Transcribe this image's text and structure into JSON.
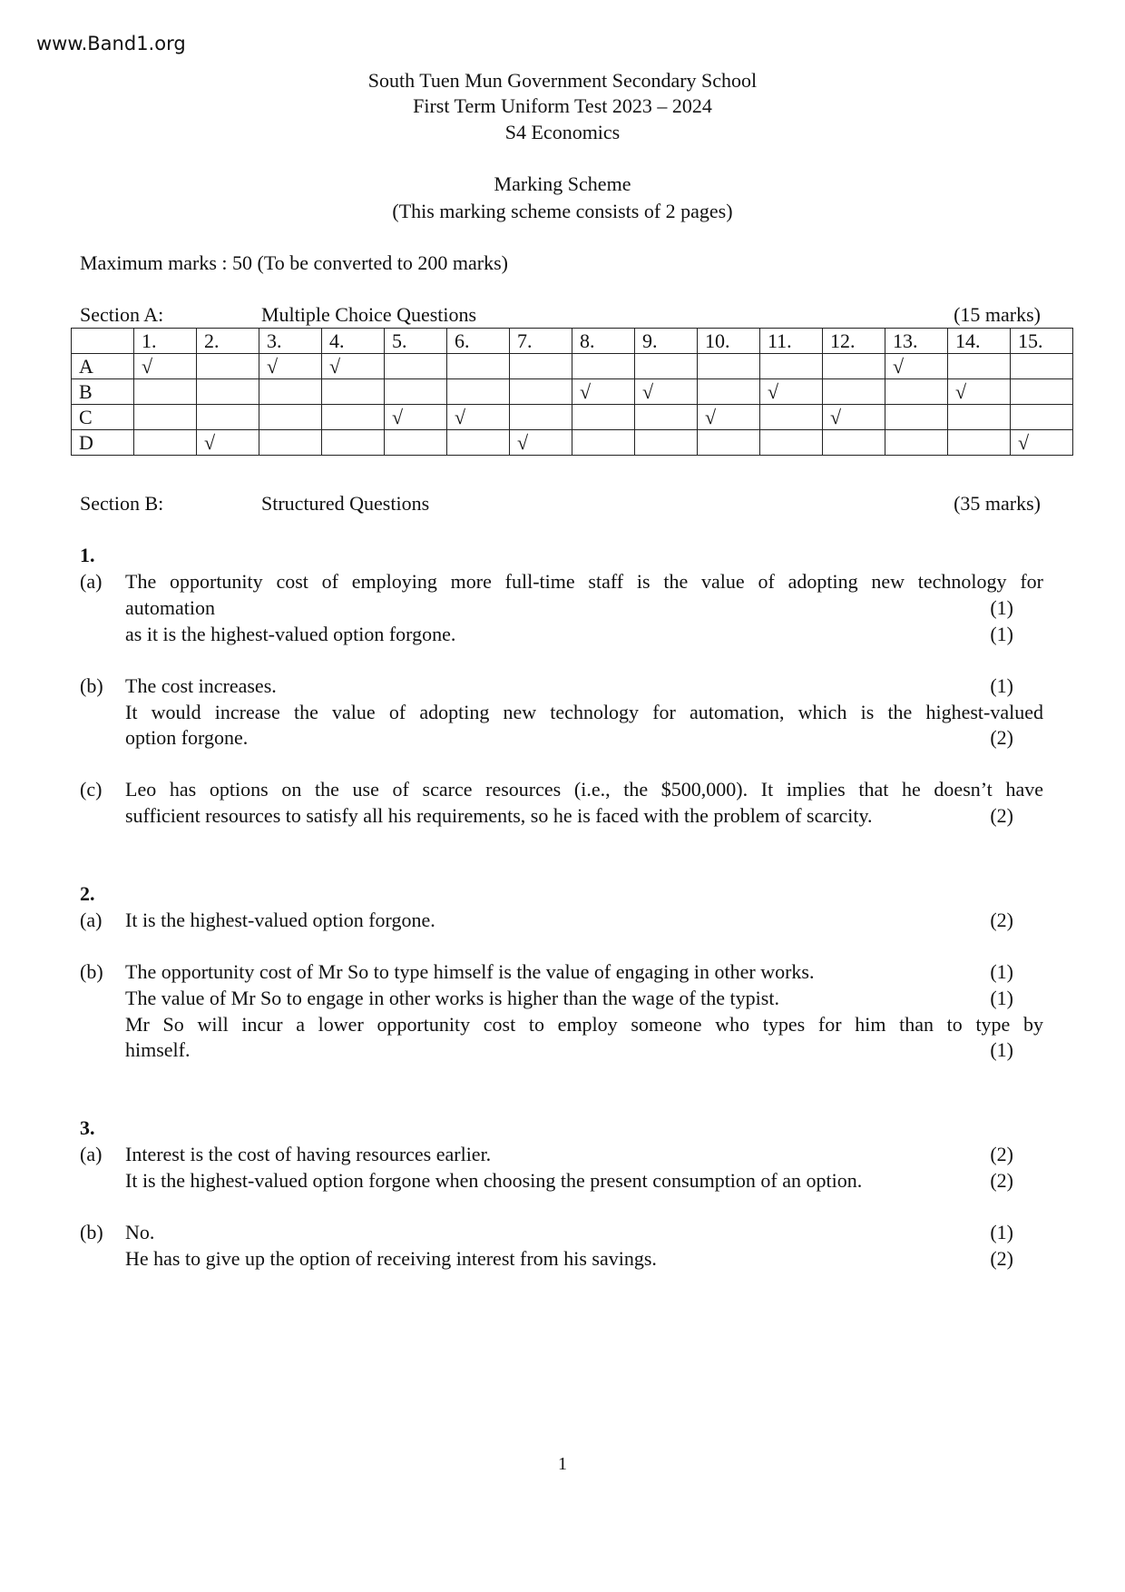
{
  "watermark": "www.Band1.org",
  "header": {
    "school": "South Tuen Mun Government Secondary School",
    "test": "First Term Uniform Test 2023 – 2024",
    "subject": "S4 Economics",
    "doc_title": "Marking Scheme",
    "pages_note": "(This marking scheme consists of 2 pages)",
    "max_marks": "Maximum marks : 50 (To be converted to 200 marks)"
  },
  "section_a": {
    "label": "Section A:",
    "title": "Multiple Choice Questions",
    "marks": "(15 marks)",
    "columns": [
      "1.",
      "2.",
      "3.",
      "4.",
      "5.",
      "6.",
      "7.",
      "8.",
      "9.",
      "10.",
      "11.",
      "12.",
      "13.",
      "14.",
      "15."
    ],
    "options": [
      "A",
      "B",
      "C",
      "D"
    ],
    "tick": "√",
    "answers": [
      "A",
      "D",
      "A",
      "A",
      "C",
      "C",
      "D",
      "B",
      "B",
      "C",
      "B",
      "C",
      "A",
      "B",
      "D"
    ]
  },
  "section_b": {
    "label": "Section B:",
    "title": "Structured Questions",
    "marks": "(35 marks)",
    "questions": [
      {
        "number": "1.",
        "parts": [
          {
            "label": "(a)",
            "lines": [
              {
                "text": "The opportunity cost of employing more full-time staff is the value of adopting new technology for",
                "mark": "",
                "justify": true
              },
              {
                "text": "automation",
                "mark": "(1)"
              },
              {
                "text": "as it is the highest-valued option forgone.",
                "mark": "(1)"
              }
            ]
          },
          {
            "label": "(b)",
            "lines": [
              {
                "text": "The cost increases.",
                "mark": "(1)"
              },
              {
                "text": "It would increase the value of adopting new technology for automation, which is the highest-valued",
                "mark": "",
                "justify": true
              },
              {
                "text": "option forgone.",
                "mark": "(2)"
              }
            ]
          },
          {
            "label": "(c)",
            "lines": [
              {
                "text": "Leo has options on the use of scarce resources (i.e., the $500,000). It implies that he doesn’t have",
                "mark": "",
                "justify": true
              },
              {
                "text": "sufficient resources to satisfy all his requirements, so he is faced with the problem of scarcity.",
                "mark": "(2)"
              }
            ]
          }
        ]
      },
      {
        "number": "2.",
        "parts": [
          {
            "label": "(a)",
            "lines": [
              {
                "text": "It is the highest-valued option forgone.",
                "mark": "(2)"
              }
            ]
          },
          {
            "label": "(b)",
            "lines": [
              {
                "text": "The opportunity cost of Mr So to type himself is the value of engaging in other works.",
                "mark": "(1)"
              },
              {
                "text": "The value of Mr So to engage in other works is higher than the wage of the typist.",
                "mark": "(1)"
              },
              {
                "text": "Mr So will incur a lower opportunity cost to employ someone who types for him than to type by",
                "mark": "",
                "justify": true
              },
              {
                "text": "himself.",
                "mark": "(1)"
              }
            ]
          }
        ]
      },
      {
        "number": "3.",
        "parts": [
          {
            "label": "(a)",
            "lines": [
              {
                "text": "Interest is the cost of having resources earlier.",
                "mark": "(2)"
              },
              {
                "text": "It is the highest-valued option forgone when choosing the present consumption of an option.",
                "mark": "(2)"
              }
            ]
          },
          {
            "label": "(b)",
            "lines": [
              {
                "text": "No.",
                "mark": "(1)"
              },
              {
                "text": "He has to give up the option of receiving interest from his savings.",
                "mark": "(2)"
              }
            ]
          }
        ]
      }
    ]
  },
  "page_number": "1"
}
